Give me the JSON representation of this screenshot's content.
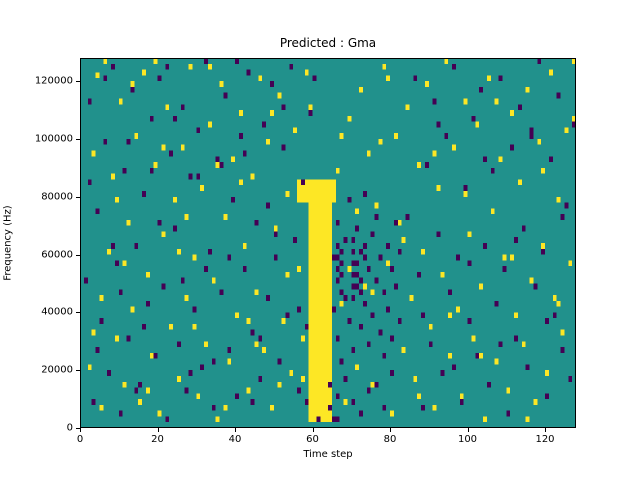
{
  "chart_data": {
    "type": "heatmap",
    "title": "Predicted : Gma",
    "xlabel": "Time step",
    "ylabel": "Frequency (Hz)",
    "xlim": [
      0,
      128
    ],
    "ylim": [
      0,
      128000
    ],
    "xticks": [
      0,
      20,
      40,
      60,
      80,
      100,
      120
    ],
    "xtick_labels": [
      "0",
      "20",
      "40",
      "60",
      "80",
      "100",
      "120"
    ],
    "yticks": [
      0,
      20000,
      40000,
      60000,
      80000,
      100000,
      120000
    ],
    "ytick_labels": [
      "0",
      "20000",
      "40000",
      "60000",
      "80000",
      "100000",
      "120000"
    ],
    "grid": {
      "cols": 128,
      "rows": 128,
      "hz_per_row": 1000
    },
    "legend": "none",
    "colors": {
      "background": "#21918c",
      "low": "#440154",
      "high": "#fde725",
      "axis": "#000000"
    },
    "regions": {
      "yellow_band": {
        "t": [
          59,
          65
        ],
        "f_khz": [
          2,
          86
        ]
      },
      "yellow_cap": {
        "t": [
          56,
          66
        ],
        "f_khz": [
          78,
          86
        ]
      }
    },
    "cells": {
      "yellow": [
        [
          2,
          20
        ],
        [
          3,
          94
        ],
        [
          4,
          121
        ],
        [
          5,
          6
        ],
        [
          6,
          126
        ],
        [
          7,
          60
        ],
        [
          8,
          86
        ],
        [
          9,
          30
        ],
        [
          10,
          112
        ],
        [
          11,
          14
        ],
        [
          12,
          70
        ],
        [
          13,
          40
        ],
        [
          14,
          100
        ],
        [
          15,
          8
        ],
        [
          16,
          122
        ],
        [
          17,
          52
        ],
        [
          18,
          24
        ],
        [
          19,
          90
        ],
        [
          20,
          4
        ],
        [
          21,
          66
        ],
        [
          22,
          110
        ],
        [
          23,
          34
        ],
        [
          24,
          78
        ],
        [
          25,
          16
        ],
        [
          26,
          96
        ],
        [
          27,
          44
        ],
        [
          28,
          124
        ],
        [
          29,
          58
        ],
        [
          30,
          10
        ],
        [
          31,
          82
        ],
        [
          32,
          28
        ],
        [
          33,
          104
        ],
        [
          34,
          50
        ],
        [
          35,
          2
        ],
        [
          36,
          118
        ],
        [
          37,
          72
        ],
        [
          38,
          22
        ],
        [
          39,
          92
        ],
        [
          40,
          38
        ],
        [
          41,
          108
        ],
        [
          42,
          62
        ],
        [
          43,
          12
        ],
        [
          44,
          86
        ],
        [
          45,
          46
        ],
        [
          46,
          120
        ],
        [
          47,
          26
        ],
        [
          48,
          98
        ],
        [
          49,
          6
        ],
        [
          50,
          68
        ],
        [
          51,
          114
        ],
        [
          52,
          36
        ],
        [
          53,
          80
        ],
        [
          54,
          18
        ],
        [
          55,
          102
        ],
        [
          56,
          54
        ],
        [
          57,
          30
        ],
        [
          58,
          122
        ],
        [
          66,
          88
        ],
        [
          67,
          42
        ],
        [
          68,
          8
        ],
        [
          69,
          106
        ],
        [
          70,
          64
        ],
        [
          71,
          20
        ],
        [
          72,
          116
        ],
        [
          73,
          48
        ],
        [
          74,
          94
        ],
        [
          75,
          14
        ],
        [
          76,
          76
        ],
        [
          77,
          32
        ],
        [
          78,
          124
        ],
        [
          79,
          56
        ],
        [
          80,
          4
        ],
        [
          81,
          100
        ],
        [
          82,
          70
        ],
        [
          83,
          26
        ],
        [
          84,
          110
        ],
        [
          85,
          44
        ],
        [
          86,
          16
        ],
        [
          87,
          90
        ],
        [
          88,
          60
        ],
        [
          89,
          118
        ],
        [
          90,
          34
        ],
        [
          91,
          6
        ],
        [
          92,
          82
        ],
        [
          93,
          52
        ],
        [
          94,
          126
        ],
        [
          95,
          24
        ],
        [
          96,
          96
        ],
        [
          97,
          40
        ],
        [
          98,
          10
        ],
        [
          99,
          112
        ],
        [
          100,
          66
        ],
        [
          101,
          30
        ],
        [
          102,
          104
        ],
        [
          103,
          48
        ],
        [
          104,
          2
        ],
        [
          105,
          120
        ],
        [
          106,
          74
        ],
        [
          107,
          22
        ],
        [
          108,
          92
        ],
        [
          109,
          58
        ],
        [
          110,
          12
        ],
        [
          111,
          108
        ],
        [
          112,
          38
        ],
        [
          113,
          84
        ],
        [
          114,
          28
        ],
        [
          115,
          116
        ],
        [
          116,
          50
        ],
        [
          117,
          8
        ],
        [
          118,
          98
        ],
        [
          119,
          62
        ],
        [
          120,
          18
        ],
        [
          121,
          122
        ],
        [
          122,
          44
        ],
        [
          123,
          78
        ],
        [
          124,
          32
        ],
        [
          125,
          102
        ],
        [
          126,
          56
        ],
        [
          127,
          126
        ],
        [
          5,
          44
        ],
        [
          9,
          78
        ],
        [
          13,
          118
        ],
        [
          17,
          12
        ],
        [
          21,
          96
        ],
        [
          25,
          60
        ],
        [
          29,
          34
        ],
        [
          33,
          124
        ],
        [
          37,
          6
        ],
        [
          41,
          84
        ],
        [
          45,
          28
        ],
        [
          49,
          108
        ],
        [
          53,
          52
        ],
        [
          57,
          16
        ],
        [
          67,
          100
        ],
        [
          71,
          74
        ],
        [
          75,
          46
        ],
        [
          79,
          120
        ],
        [
          83,
          64
        ],
        [
          87,
          10
        ],
        [
          91,
          94
        ],
        [
          95,
          38
        ],
        [
          99,
          80
        ],
        [
          103,
          24
        ],
        [
          107,
          112
        ],
        [
          111,
          58
        ],
        [
          115,
          2
        ],
        [
          119,
          88
        ],
        [
          123,
          42
        ],
        [
          127,
          106
        ],
        [
          3,
          32
        ],
        [
          11,
          56
        ],
        [
          19,
          126
        ],
        [
          27,
          72
        ],
        [
          35,
          90
        ],
        [
          43,
          36
        ],
        [
          51,
          14
        ],
        [
          59,
          110
        ],
        [
          69,
          54
        ],
        [
          77,
          98
        ]
      ],
      "purple": [
        [
          1,
          50
        ],
        [
          2,
          112
        ],
        [
          3,
          8
        ],
        [
          4,
          74
        ],
        [
          5,
          36
        ],
        [
          6,
          98
        ],
        [
          7,
          18
        ],
        [
          8,
          124
        ],
        [
          9,
          56
        ],
        [
          10,
          4
        ],
        [
          11,
          88
        ],
        [
          12,
          30
        ],
        [
          13,
          116
        ],
        [
          14,
          62
        ],
        [
          15,
          14
        ],
        [
          16,
          80
        ],
        [
          17,
          42
        ],
        [
          18,
          106
        ],
        [
          19,
          24
        ],
        [
          20,
          120
        ],
        [
          21,
          48
        ],
        [
          22,
          2
        ],
        [
          23,
          94
        ],
        [
          24,
          68
        ],
        [
          25,
          28
        ],
        [
          26,
          110
        ],
        [
          27,
          12
        ],
        [
          28,
          86
        ],
        [
          29,
          40
        ],
        [
          30,
          102
        ],
        [
          31,
          20
        ],
        [
          32,
          126
        ],
        [
          33,
          60
        ],
        [
          34,
          6
        ],
        [
          35,
          92
        ],
        [
          36,
          46
        ],
        [
          37,
          114
        ],
        [
          38,
          26
        ],
        [
          39,
          78
        ],
        [
          40,
          10
        ],
        [
          41,
          100
        ],
        [
          42,
          54
        ],
        [
          43,
          122
        ],
        [
          44,
          32
        ],
        [
          45,
          70
        ],
        [
          46,
          16
        ],
        [
          47,
          104
        ],
        [
          48,
          44
        ],
        [
          49,
          118
        ],
        [
          50,
          58
        ],
        [
          51,
          22
        ],
        [
          52,
          96
        ],
        [
          53,
          38
        ],
        [
          54,
          124
        ],
        [
          55,
          64
        ],
        [
          56,
          12
        ],
        [
          57,
          84
        ],
        [
          58,
          34
        ],
        [
          59,
          108
        ],
        [
          86,
          120
        ],
        [
          87,
          52
        ],
        [
          88,
          6
        ],
        [
          89,
          90
        ],
        [
          90,
          28
        ],
        [
          91,
          112
        ],
        [
          92,
          66
        ],
        [
          93,
          18
        ],
        [
          94,
          100
        ],
        [
          95,
          46
        ],
        [
          96,
          124
        ],
        [
          97,
          58
        ],
        [
          98,
          8
        ],
        [
          99,
          82
        ],
        [
          100,
          36
        ],
        [
          101,
          106
        ],
        [
          102,
          24
        ],
        [
          103,
          116
        ],
        [
          104,
          62
        ],
        [
          105,
          14
        ],
        [
          106,
          88
        ],
        [
          107,
          42
        ],
        [
          108,
          120
        ],
        [
          109,
          54
        ],
        [
          110,
          4
        ],
        [
          111,
          96
        ],
        [
          112,
          30
        ],
        [
          113,
          110
        ],
        [
          114,
          68
        ],
        [
          115,
          20
        ],
        [
          116,
          102
        ],
        [
          117,
          48
        ],
        [
          118,
          126
        ],
        [
          119,
          60
        ],
        [
          120,
          10
        ],
        [
          121,
          92
        ],
        [
          122,
          38
        ],
        [
          123,
          114
        ],
        [
          124,
          26
        ],
        [
          125,
          76
        ],
        [
          126,
          16
        ],
        [
          127,
          104
        ],
        [
          4,
          26
        ],
        [
          8,
          62
        ],
        [
          12,
          98
        ],
        [
          16,
          34
        ],
        [
          20,
          70
        ],
        [
          24,
          106
        ],
        [
          28,
          18
        ],
        [
          32,
          54
        ],
        [
          36,
          90
        ],
        [
          40,
          126
        ],
        [
          44,
          8
        ],
        [
          48,
          76
        ],
        [
          52,
          110
        ],
        [
          56,
          40
        ],
        [
          60,
          120
        ],
        [
          64,
          14
        ],
        [
          84,
          72
        ],
        [
          88,
          38
        ],
        [
          92,
          104
        ],
        [
          96,
          20
        ],
        [
          100,
          56
        ],
        [
          104,
          92
        ],
        [
          108,
          28
        ],
        [
          112,
          64
        ],
        [
          116,
          100
        ],
        [
          120,
          36
        ],
        [
          124,
          72
        ],
        [
          2,
          84
        ],
        [
          6,
          120
        ],
        [
          10,
          46
        ],
        [
          14,
          12
        ],
        [
          18,
          88
        ],
        [
          22,
          124
        ],
        [
          26,
          50
        ],
        [
          30,
          86
        ],
        [
          34,
          22
        ],
        [
          38,
          58
        ],
        [
          42,
          94
        ],
        [
          46,
          30
        ],
        [
          50,
          66
        ]
      ],
      "purple_cluster": [
        [
          65,
          40
        ],
        [
          65,
          58
        ],
        [
          66,
          30
        ],
        [
          66,
          70
        ],
        [
          67,
          52
        ],
        [
          67,
          22
        ],
        [
          68,
          64
        ],
        [
          68,
          44
        ],
        [
          69,
          36
        ],
        [
          69,
          78
        ],
        [
          70,
          56
        ],
        [
          70,
          26
        ],
        [
          71,
          48
        ],
        [
          71,
          68
        ],
        [
          72,
          34
        ],
        [
          72,
          60
        ],
        [
          73,
          42
        ],
        [
          73,
          80
        ],
        [
          74,
          28
        ],
        [
          74,
          54
        ],
        [
          75,
          66
        ],
        [
          75,
          38
        ],
        [
          76,
          50
        ],
        [
          76,
          72
        ],
        [
          77,
          32
        ],
        [
          77,
          58
        ],
        [
          78,
          46
        ],
        [
          78,
          24
        ],
        [
          79,
          62
        ],
        [
          79,
          40
        ],
        [
          80,
          54
        ],
        [
          80,
          30
        ],
        [
          81,
          48
        ],
        [
          81,
          70
        ],
        [
          82,
          36
        ],
        [
          82,
          60
        ],
        [
          66,
          10
        ],
        [
          70,
          8
        ],
        [
          74,
          12
        ],
        [
          78,
          6
        ],
        [
          68,
          16
        ],
        [
          72,
          4
        ],
        [
          76,
          14
        ],
        [
          80,
          18
        ],
        [
          70,
          44
        ],
        [
          70,
          48
        ],
        [
          70,
          52
        ],
        [
          70,
          60
        ],
        [
          70,
          64
        ],
        [
          71,
          56
        ],
        [
          71,
          52
        ],
        [
          72,
          46
        ],
        [
          72,
          50
        ],
        [
          73,
          58
        ],
        [
          73,
          62
        ],
        [
          58,
          8
        ],
        [
          61,
          2
        ],
        [
          64,
          6
        ],
        [
          66,
          2
        ],
        [
          65,
          2
        ],
        [
          66,
          50
        ],
        [
          66,
          54
        ],
        [
          66,
          58
        ],
        [
          66,
          62
        ],
        [
          67,
          46
        ],
        [
          67,
          56
        ],
        [
          67,
          60
        ]
      ]
    }
  }
}
